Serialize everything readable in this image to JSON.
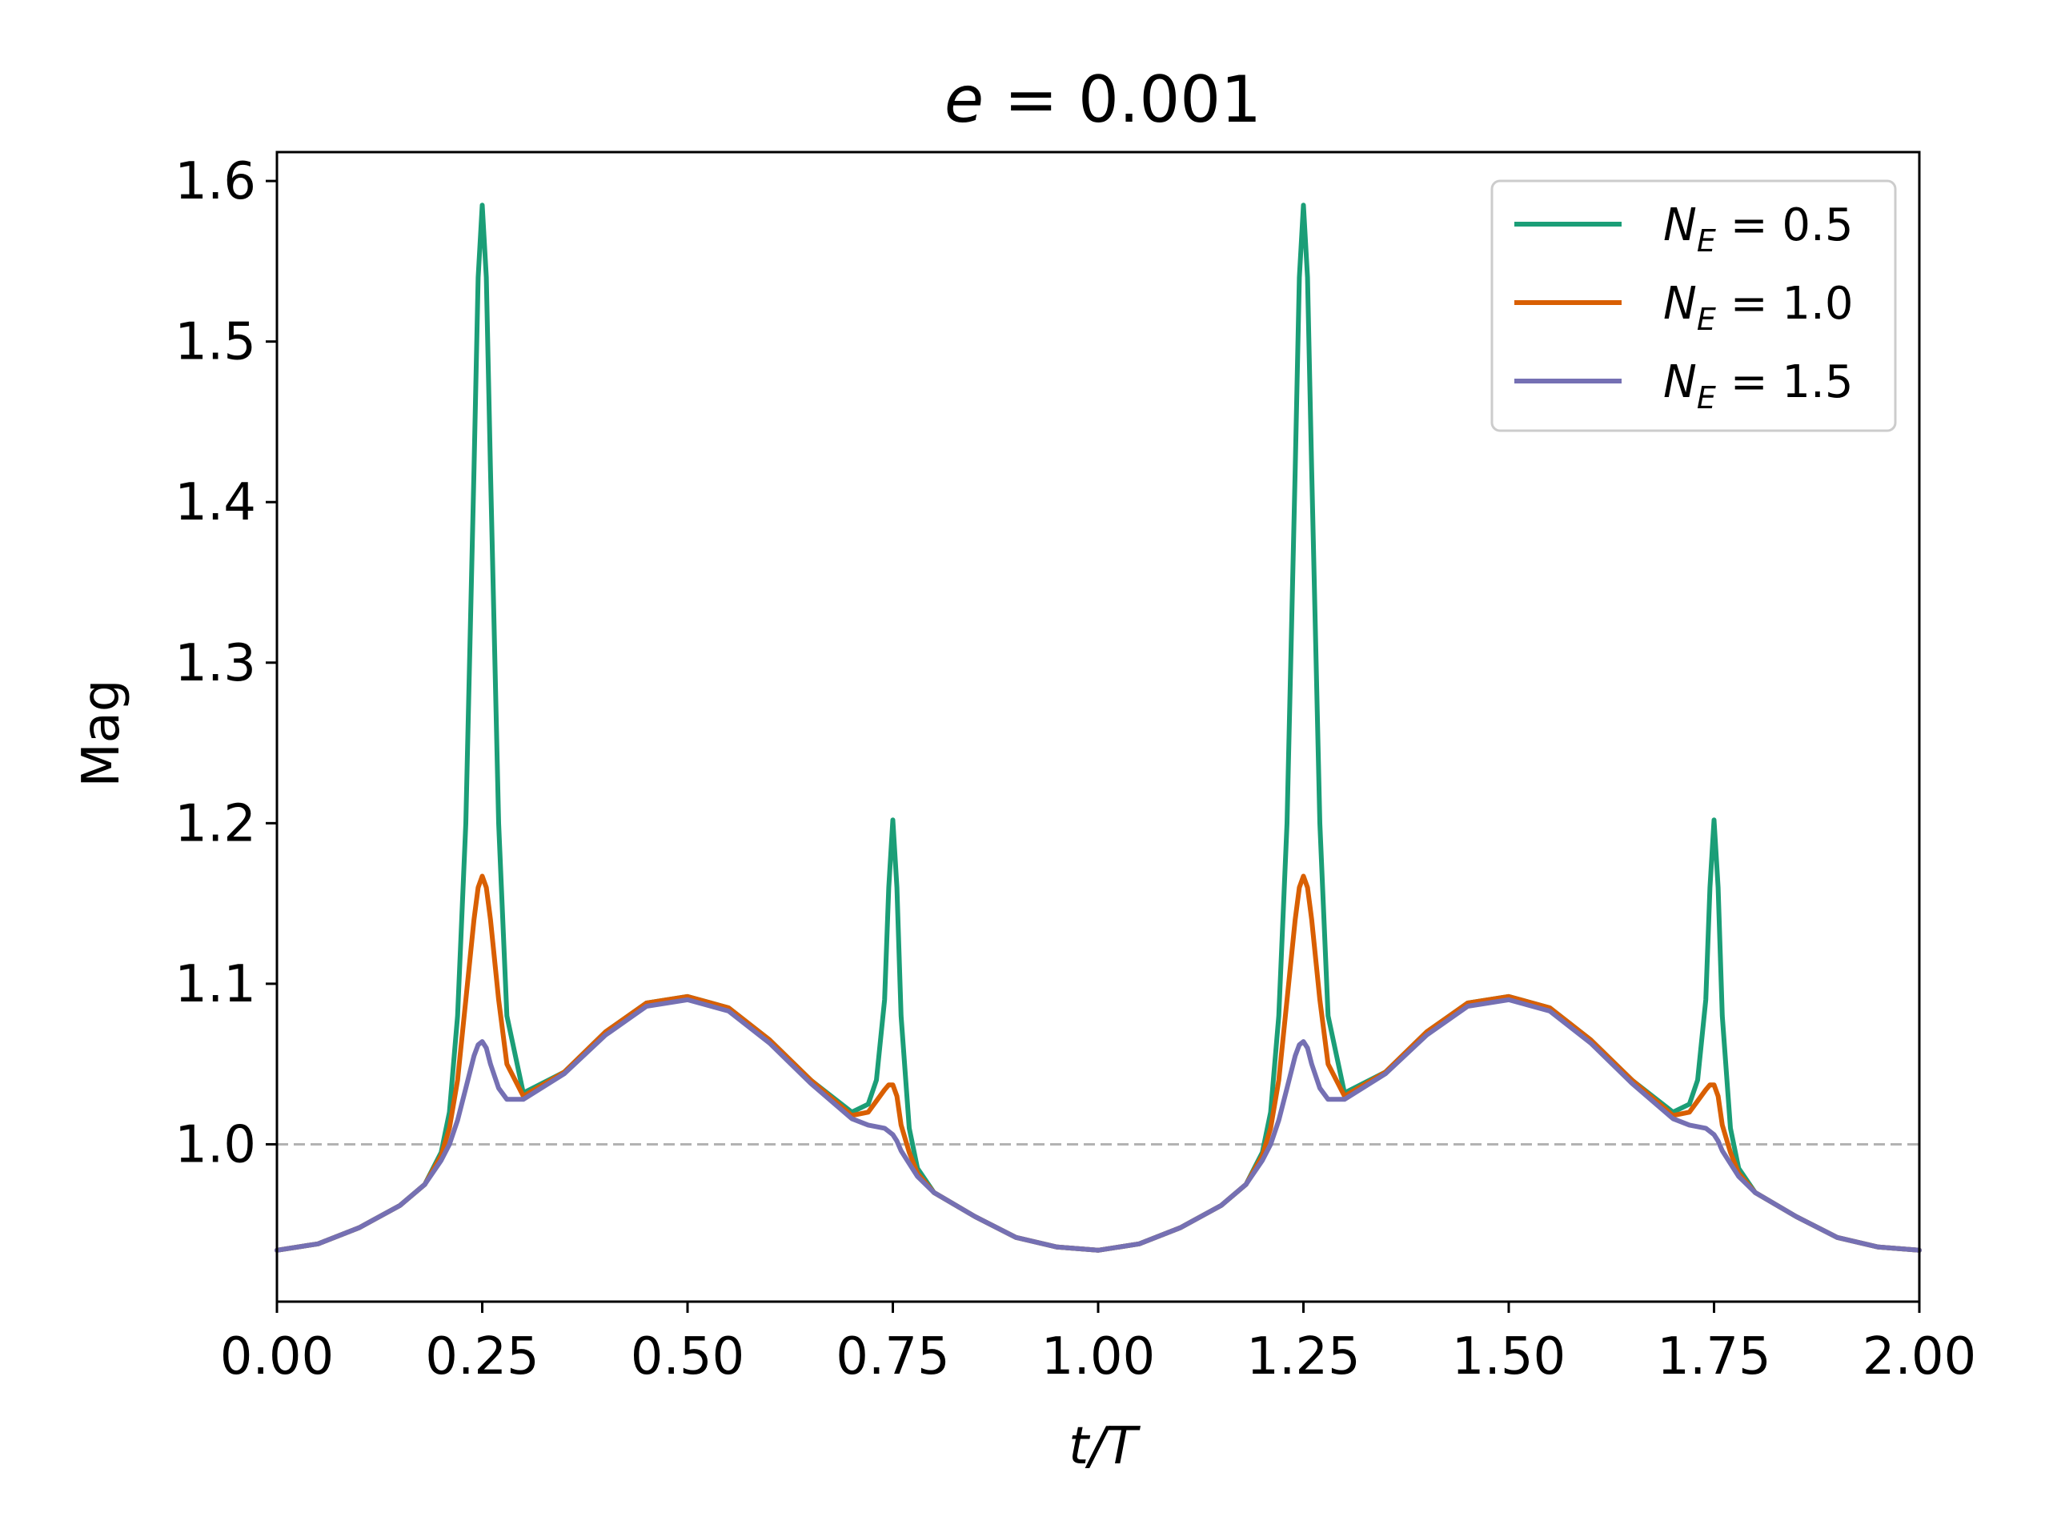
{
  "chart_data": {
    "type": "line",
    "title": "e = 0.001",
    "title_parts": {
      "var": "e",
      "eq": " = ",
      "value": "0.001"
    },
    "xlabel": "t/T",
    "ylabel": "Mag",
    "xlim": [
      0.0,
      2.0
    ],
    "ylim": [
      0.902,
      1.618
    ],
    "xticks": [
      0.0,
      0.25,
      0.5,
      0.75,
      1.0,
      1.25,
      1.5,
      1.75,
      2.0
    ],
    "xtick_labels": [
      "0.00",
      "0.25",
      "0.50",
      "0.75",
      "1.00",
      "1.25",
      "1.50",
      "1.75",
      "2.00"
    ],
    "yticks": [
      1.0,
      1.1,
      1.2,
      1.3,
      1.4,
      1.5,
      1.6
    ],
    "ytick_labels": [
      "1.0",
      "1.1",
      "1.2",
      "1.3",
      "1.4",
      "1.5",
      "1.6"
    ],
    "reference_line": {
      "y": 1.0,
      "style": "dashed",
      "color": "#b3b3b3"
    },
    "grid": false,
    "legend_position": "top-right",
    "series": [
      {
        "name": "N_E = 0.5",
        "label_sym": "N",
        "label_sub": "E",
        "label_val": " = 0.5",
        "color": "#1b9e77",
        "x": [
          0.0,
          0.05,
          0.1,
          0.15,
          0.18,
          0.2,
          0.21,
          0.22,
          0.23,
          0.24,
          0.245,
          0.25,
          0.255,
          0.26,
          0.27,
          0.28,
          0.3,
          0.35,
          0.4,
          0.45,
          0.5,
          0.55,
          0.6,
          0.65,
          0.7,
          0.72,
          0.73,
          0.74,
          0.745,
          0.75,
          0.755,
          0.76,
          0.77,
          0.78,
          0.8,
          0.85,
          0.9,
          0.95,
          1.0,
          1.05,
          1.1,
          1.15,
          1.18,
          1.2,
          1.21,
          1.22,
          1.23,
          1.24,
          1.245,
          1.25,
          1.255,
          1.26,
          1.27,
          1.28,
          1.3,
          1.35,
          1.4,
          1.45,
          1.5,
          1.55,
          1.6,
          1.65,
          1.7,
          1.72,
          1.73,
          1.74,
          1.745,
          1.75,
          1.755,
          1.76,
          1.77,
          1.78,
          1.8,
          1.85,
          1.9,
          1.95,
          2.0
        ],
        "y": [
          0.934,
          0.938,
          0.948,
          0.962,
          0.975,
          0.995,
          1.02,
          1.08,
          1.2,
          1.42,
          1.54,
          1.585,
          1.54,
          1.42,
          1.2,
          1.08,
          1.032,
          1.045,
          1.07,
          1.088,
          1.092,
          1.085,
          1.065,
          1.04,
          1.02,
          1.025,
          1.04,
          1.09,
          1.16,
          1.202,
          1.16,
          1.08,
          1.01,
          0.985,
          0.97,
          0.955,
          0.942,
          0.936,
          0.934,
          0.938,
          0.948,
          0.962,
          0.975,
          0.995,
          1.02,
          1.08,
          1.2,
          1.42,
          1.54,
          1.585,
          1.54,
          1.42,
          1.2,
          1.08,
          1.032,
          1.045,
          1.07,
          1.088,
          1.092,
          1.085,
          1.065,
          1.04,
          1.02,
          1.025,
          1.04,
          1.09,
          1.16,
          1.202,
          1.16,
          1.08,
          1.01,
          0.985,
          0.97,
          0.955,
          0.942,
          0.936,
          0.934
        ]
      },
      {
        "name": "N_E = 1.0",
        "label_sym": "N",
        "label_sub": "E",
        "label_val": " = 1.0",
        "color": "#d95f02",
        "x": [
          0.0,
          0.05,
          0.1,
          0.15,
          0.18,
          0.2,
          0.21,
          0.22,
          0.23,
          0.24,
          0.245,
          0.25,
          0.255,
          0.26,
          0.27,
          0.28,
          0.3,
          0.35,
          0.4,
          0.45,
          0.5,
          0.55,
          0.6,
          0.65,
          0.7,
          0.72,
          0.73,
          0.74,
          0.745,
          0.75,
          0.755,
          0.76,
          0.77,
          0.78,
          0.8,
          0.85,
          0.9,
          0.95,
          1.0,
          1.05,
          1.1,
          1.15,
          1.18,
          1.2,
          1.21,
          1.22,
          1.23,
          1.24,
          1.245,
          1.25,
          1.255,
          1.26,
          1.27,
          1.28,
          1.3,
          1.35,
          1.4,
          1.45,
          1.5,
          1.55,
          1.6,
          1.65,
          1.7,
          1.72,
          1.73,
          1.74,
          1.745,
          1.75,
          1.755,
          1.76,
          1.77,
          1.78,
          1.8,
          1.85,
          1.9,
          1.95,
          2.0
        ],
        "y": [
          0.934,
          0.938,
          0.948,
          0.962,
          0.975,
          0.993,
          1.01,
          1.04,
          1.09,
          1.14,
          1.16,
          1.167,
          1.16,
          1.14,
          1.09,
          1.05,
          1.03,
          1.045,
          1.07,
          1.088,
          1.092,
          1.085,
          1.065,
          1.04,
          1.018,
          1.02,
          1.027,
          1.034,
          1.037,
          1.037,
          1.03,
          1.012,
          0.995,
          0.982,
          0.97,
          0.955,
          0.942,
          0.936,
          0.934,
          0.938,
          0.948,
          0.962,
          0.975,
          0.993,
          1.01,
          1.04,
          1.09,
          1.14,
          1.16,
          1.167,
          1.16,
          1.14,
          1.09,
          1.05,
          1.03,
          1.045,
          1.07,
          1.088,
          1.092,
          1.085,
          1.065,
          1.04,
          1.018,
          1.02,
          1.027,
          1.034,
          1.037,
          1.037,
          1.03,
          1.012,
          0.995,
          0.982,
          0.97,
          0.955,
          0.942,
          0.936,
          0.934
        ]
      },
      {
        "name": "N_E = 1.5",
        "label_sym": "N",
        "label_sub": "E",
        "label_val": " = 1.5",
        "color": "#7570b3",
        "x": [
          0.0,
          0.05,
          0.1,
          0.15,
          0.18,
          0.2,
          0.21,
          0.22,
          0.23,
          0.24,
          0.245,
          0.25,
          0.255,
          0.26,
          0.27,
          0.28,
          0.3,
          0.35,
          0.4,
          0.45,
          0.5,
          0.55,
          0.6,
          0.65,
          0.7,
          0.72,
          0.73,
          0.74,
          0.745,
          0.75,
          0.755,
          0.76,
          0.77,
          0.78,
          0.8,
          0.85,
          0.9,
          0.95,
          1.0,
          1.05,
          1.1,
          1.15,
          1.18,
          1.2,
          1.21,
          1.22,
          1.23,
          1.24,
          1.245,
          1.25,
          1.255,
          1.26,
          1.27,
          1.28,
          1.3,
          1.35,
          1.4,
          1.45,
          1.5,
          1.55,
          1.6,
          1.65,
          1.7,
          1.72,
          1.73,
          1.74,
          1.745,
          1.75,
          1.755,
          1.76,
          1.77,
          1.78,
          1.8,
          1.85,
          1.9,
          1.95,
          2.0
        ],
        "y": [
          0.934,
          0.938,
          0.948,
          0.962,
          0.975,
          0.99,
          1.0,
          1.015,
          1.035,
          1.055,
          1.062,
          1.064,
          1.06,
          1.05,
          1.035,
          1.028,
          1.028,
          1.044,
          1.068,
          1.086,
          1.09,
          1.083,
          1.063,
          1.038,
          1.016,
          1.012,
          1.011,
          1.01,
          1.008,
          1.006,
          1.002,
          0.996,
          0.988,
          0.98,
          0.97,
          0.955,
          0.942,
          0.936,
          0.934,
          0.938,
          0.948,
          0.962,
          0.975,
          0.99,
          1.0,
          1.015,
          1.035,
          1.055,
          1.062,
          1.064,
          1.06,
          1.05,
          1.035,
          1.028,
          1.028,
          1.044,
          1.068,
          1.086,
          1.09,
          1.083,
          1.063,
          1.038,
          1.016,
          1.012,
          1.011,
          1.01,
          1.008,
          1.006,
          1.002,
          0.996,
          0.988,
          0.98,
          0.97,
          0.955,
          0.942,
          0.936,
          0.934
        ]
      }
    ]
  }
}
